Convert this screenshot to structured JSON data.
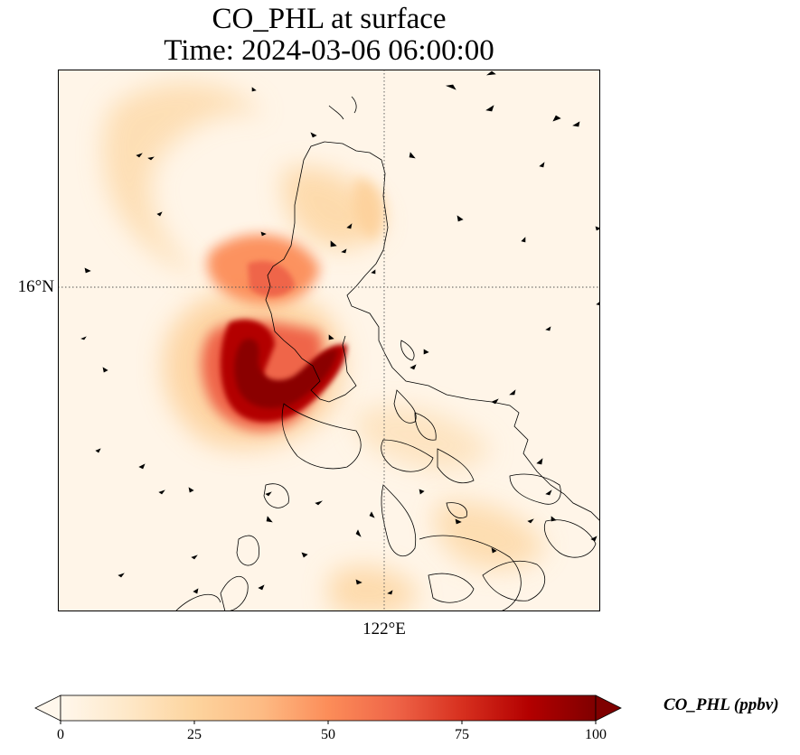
{
  "title": {
    "line1": "CO_PHL at surface",
    "line2": "Time: 2024-03-06 06:00:00"
  },
  "axes": {
    "lat_tick": "16°N",
    "lon_tick": "122°E"
  },
  "colorbar": {
    "label": "CO_PHL (ppbv)",
    "ticks": [
      "0",
      "25",
      "50",
      "75",
      "100"
    ],
    "min": 0,
    "max": 100,
    "extend": "both",
    "colormap": "OrRd",
    "stops": [
      "#fff7ec",
      "#fee8c8",
      "#fdd49e",
      "#fdbb84",
      "#fc8d59",
      "#ef6548",
      "#d7301f",
      "#b30000",
      "#7f0000"
    ]
  },
  "map": {
    "gridlines": "dotted",
    "coastline_color": "#000000",
    "background_color": "#fff5e8"
  }
}
